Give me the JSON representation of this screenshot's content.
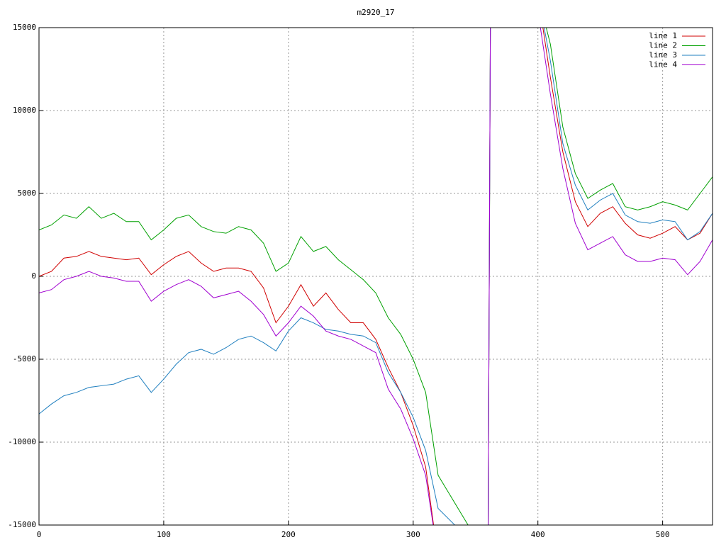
{
  "chart_data": {
    "type": "line",
    "title": "m2920_17",
    "x": [
      0,
      10,
      20,
      30,
      40,
      50,
      60,
      70,
      80,
      90,
      100,
      110,
      120,
      130,
      140,
      150,
      160,
      170,
      180,
      190,
      200,
      210,
      220,
      230,
      240,
      250,
      260,
      270,
      280,
      290,
      300,
      310,
      320,
      360,
      362,
      400,
      410,
      420,
      430,
      440,
      450,
      460,
      470,
      480,
      490,
      500,
      510,
      520,
      530,
      540
    ],
    "series": [
      {
        "name": "line 1",
        "color": "#d00000",
        "values": [
          0,
          300,
          1100,
          1200,
          1500,
          1200,
          1100,
          1000,
          1100,
          100,
          700,
          1200,
          1500,
          800,
          300,
          500,
          500,
          300,
          -700,
          -2800,
          -1800,
          -500,
          -1800,
          -1000,
          -2000,
          -2800,
          -2800,
          -3800,
          -5500,
          -7000,
          -9000,
          -11500,
          -17000,
          -17000,
          17000,
          17000,
          12000,
          7500,
          4500,
          3000,
          3800,
          4200,
          3200,
          2500,
          2300,
          2600,
          3000,
          2200,
          2600,
          3800
        ]
      },
      {
        "name": "line 2",
        "color": "#00a000",
        "values": [
          2800,
          3100,
          3700,
          3500,
          4200,
          3500,
          3800,
          3300,
          3300,
          2200,
          2800,
          3500,
          3700,
          3000,
          2700,
          2600,
          3000,
          2800,
          2000,
          300,
          800,
          2400,
          1500,
          1800,
          1000,
          400,
          -200,
          -1000,
          -2500,
          -3500,
          -5000,
          -7000,
          -12000,
          -17000,
          17000,
          17000,
          14000,
          9000,
          6200,
          4700,
          5200,
          5600,
          4200,
          4000,
          4200,
          4500,
          4300,
          4000,
          5000,
          6000
        ]
      },
      {
        "name": "line 3",
        "color": "#1f7fbf",
        "values": [
          -8300,
          -7700,
          -7200,
          -7000,
          -6700,
          -6600,
          -6500,
          -6200,
          -6000,
          -7000,
          -6200,
          -5300,
          -4600,
          -4400,
          -4700,
          -4300,
          -3800,
          -3600,
          -4000,
          -4500,
          -3300,
          -2500,
          -2800,
          -3200,
          -3300,
          -3500,
          -3600,
          -4000,
          -5800,
          -7000,
          -8500,
          -10500,
          -14000,
          -17000,
          17000,
          17000,
          13000,
          8000,
          5500,
          4000,
          4600,
          5000,
          3700,
          3300,
          3200,
          3400,
          3300,
          2200,
          2700,
          3800
        ]
      },
      {
        "name": "line 4",
        "color": "#a000d0",
        "values": [
          -1000,
          -800,
          -200,
          0,
          300,
          0,
          -100,
          -300,
          -300,
          -1500,
          -900,
          -500,
          -200,
          -600,
          -1300,
          -1100,
          -900,
          -1500,
          -2300,
          -3600,
          -2800,
          -1800,
          -2400,
          -3300,
          -3600,
          -3800,
          -4200,
          -4600,
          -6800,
          -8000,
          -9800,
          -12000,
          -17000,
          -17000,
          17000,
          16000,
          11000,
          6500,
          3200,
          1600,
          2000,
          2400,
          1300,
          900,
          900,
          1100,
          1000,
          100,
          900,
          2200
        ]
      }
    ],
    "xlim": [
      0,
      540
    ],
    "xticks": [
      0,
      100,
      200,
      300,
      400,
      500
    ],
    "ylim": [
      -15000,
      15000
    ],
    "yticks": [
      -15000,
      -10000,
      -5000,
      0,
      5000,
      10000,
      15000
    ],
    "grid": true,
    "legend": "top-right"
  }
}
